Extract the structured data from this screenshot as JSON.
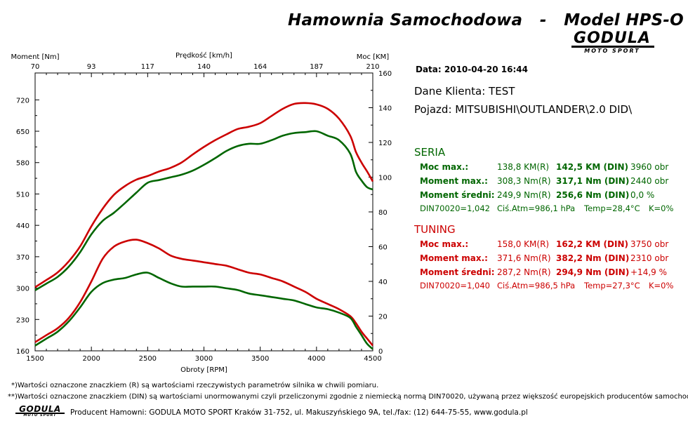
{
  "header": {
    "title": "Hamownia Samochodowa   -   Model HPS-O",
    "logo_text": "GODULA",
    "logo_subtext": "MOTO SPORT"
  },
  "info": {
    "date": "Data: 2010-04-20  16:44",
    "client": "Dane Klienta: TEST",
    "vehicle": "Pojazd: MITSUBISHI\\OUTLANDER\\2.0 DID\\"
  },
  "seria": {
    "title": "SERIA",
    "color": "#006600",
    "rows": [
      {
        "label": "Moc max.:",
        "r": "138,8 KM(R)",
        "din": "142,5 KM (DIN)",
        "extra": "3960 obr"
      },
      {
        "label": "Moment max.:",
        "r": "308,3 Nm(R)",
        "din": "317,1 Nm (DIN)",
        "extra": "2440 obr"
      },
      {
        "label": "Moment średni:",
        "r": "249,9 Nm(R)",
        "din": "256,6 Nm (DIN)",
        "extra": "0,0 %"
      }
    ],
    "env": {
      "din": "DIN70020=1,042",
      "atm": "Ciś.Atm=986,1 hPa",
      "temp": "Temp=28,4°C",
      "k": "K=0%"
    }
  },
  "tuning": {
    "title": "TUNING",
    "color": "#cc0000",
    "rows": [
      {
        "label": "Moc max.:",
        "r": "158,0 KM(R)",
        "din": "162,2 KM (DIN)",
        "extra": "3750 obr"
      },
      {
        "label": "Moment max.:",
        "r": "371,6 Nm(R)",
        "din": "382,2 Nm (DIN)",
        "extra": "2310 obr"
      },
      {
        "label": "Moment średni:",
        "r": "287,2 Nm(R)",
        "din": "294,9 Nm (DIN)",
        "extra": "+14,9 %"
      }
    ],
    "env": {
      "din": "DIN70020=1,040",
      "atm": "Ciś.Atm=986,5 hPa",
      "temp": "Temp=27,3°C",
      "k": "K=0%"
    }
  },
  "footer": {
    "note1": "*)Wartości oznaczone znaczkiem (R) są wartościami rzeczywistych parametrów silnika w chwili pomiaru.",
    "note2": "**)Wartości oznaczone znaczkiem (DIN) są wartościami unormowanymi czyli przeliczonymi zgodnie z niemiecką normą DIN70020, używaną przez większość europejskich producentów samochodów.",
    "producer": "Producent Hamowni: GODULA MOTO SPORT Kraków 31-752, ul. Makuszyńskiego 9A, tel./fax: (12) 644-75-55, www.godula.pl",
    "logo_text": "GODULA",
    "logo_subtext": "MOTO SPORT"
  },
  "chart_data": {
    "type": "line",
    "xlabel": "Obroty [RPM]",
    "x2label": "Prędkość [km/h]",
    "ylabel_left": "Moment [Nm]",
    "ylabel_right": "Moc [KM]",
    "xlim": [
      1500,
      4500
    ],
    "ylim_left": [
      160,
      780
    ],
    "ylim_right": [
      0,
      160
    ],
    "x_ticks": [
      1500,
      2000,
      2500,
      3000,
      3500,
      4000,
      4500
    ],
    "y_ticks_left": [
      160,
      230,
      300,
      370,
      440,
      510,
      580,
      650,
      720
    ],
    "y_ticks_right": [
      0,
      20,
      40,
      60,
      80,
      100,
      120,
      140,
      160
    ],
    "x2_ticks": [
      "70",
      "93",
      "117",
      "140",
      "164",
      "187",
      "210"
    ],
    "grid": false,
    "colors": {
      "seria": "#006600",
      "tuning": "#cc0000"
    },
    "series": [
      {
        "axis": "left",
        "color": "#cc0000",
        "x": [
          1500,
          1600,
          1700,
          1800,
          1900,
          2000,
          2100,
          2200,
          2300,
          2400,
          2500,
          2600,
          2700,
          2800,
          2900,
          3000,
          3100,
          3200,
          3300,
          3400,
          3500,
          3600,
          3700,
          3800,
          3900,
          4000,
          4100,
          4200,
          4300,
          4350,
          4400,
          4450,
          4500
        ],
        "values": [
          302,
          318,
          335,
          360,
          393,
          438,
          477,
          508,
          528,
          542,
          550,
          560,
          568,
          580,
          598,
          615,
          630,
          643,
          655,
          660,
          668,
          684,
          700,
          711,
          713,
          710,
          700,
          678,
          640,
          604,
          580,
          560,
          538
        ]
      },
      {
        "axis": "left",
        "color": "#006600",
        "x": [
          1500,
          1600,
          1700,
          1800,
          1900,
          2000,
          2100,
          2200,
          2300,
          2400,
          2500,
          2600,
          2700,
          2800,
          2900,
          3000,
          3100,
          3200,
          3300,
          3400,
          3500,
          3600,
          3700,
          3800,
          3900,
          4000,
          4100,
          4200,
          4300,
          4350,
          4400,
          4450,
          4500
        ],
        "values": [
          295,
          310,
          325,
          348,
          380,
          420,
          450,
          468,
          490,
          513,
          535,
          541,
          547,
          553,
          562,
          575,
          590,
          606,
          617,
          622,
          622,
          630,
          640,
          646,
          648,
          650,
          640,
          630,
          600,
          560,
          540,
          525,
          520
        ]
      },
      {
        "axis": "right",
        "color": "#cc0000",
        "x": [
          1500,
          1600,
          1700,
          1800,
          1900,
          2000,
          2100,
          2200,
          2300,
          2400,
          2500,
          2600,
          2700,
          2800,
          2900,
          3000,
          3100,
          3200,
          3300,
          3400,
          3500,
          3600,
          3700,
          3800,
          3900,
          4000,
          4100,
          4200,
          4300,
          4350,
          4400,
          4450,
          4500
        ],
        "values": [
          5,
          9,
          13,
          19,
          28,
          40,
          53,
          60,
          63,
          64,
          62,
          59,
          55,
          53,
          52,
          51,
          50,
          49,
          47,
          45,
          44,
          42,
          40,
          37,
          34,
          30,
          27,
          24,
          20,
          16,
          11,
          7,
          3
        ]
      },
      {
        "axis": "right",
        "color": "#006600",
        "x": [
          1500,
          1600,
          1700,
          1800,
          1900,
          2000,
          2100,
          2200,
          2300,
          2400,
          2500,
          2600,
          2700,
          2800,
          2900,
          3000,
          3100,
          3200,
          3300,
          3400,
          3500,
          3600,
          3700,
          3800,
          3900,
          4000,
          4100,
          4200,
          4300,
          4350,
          4400,
          4450,
          4500
        ],
        "values": [
          3,
          7,
          11,
          17,
          25,
          34,
          39,
          41,
          42,
          44,
          45,
          42,
          39,
          37,
          37,
          37,
          37,
          36,
          35,
          33,
          32,
          31,
          30,
          29,
          27,
          25,
          24,
          22,
          19,
          14,
          9,
          4,
          1
        ]
      }
    ]
  }
}
